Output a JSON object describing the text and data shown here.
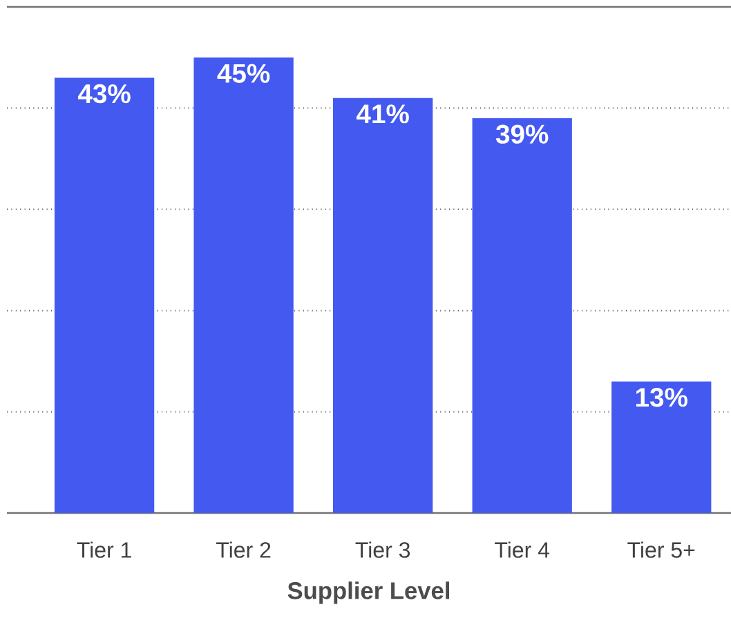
{
  "chart_data": {
    "type": "bar",
    "xlabel": "Supplier Level",
    "categories": [
      "Tier 1",
      "Tier 2",
      "Tier 3",
      "Tier 4",
      "Tier 5+"
    ],
    "values": [
      43,
      45,
      41,
      39,
      13
    ],
    "value_labels": [
      "43%",
      "45%",
      "41%",
      "39%",
      "13%"
    ],
    "color": "#4459f0",
    "ylim": [
      0,
      50
    ],
    "yticks": [
      {
        "value": 10,
        "label": null
      },
      {
        "value": 20,
        "label": null
      },
      {
        "value": 30,
        "label": null
      },
      {
        "value": 40,
        "label": null
      }
    ],
    "grid": "y",
    "tick_labels": "x"
  }
}
